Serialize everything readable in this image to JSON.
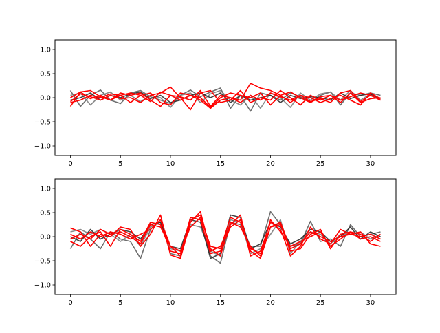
{
  "chart_data": [
    {
      "type": "line",
      "panel": "top",
      "xlim": [
        -1.55,
        32.55
      ],
      "ylim": [
        -1.2,
        1.2
      ],
      "xticks": [
        0,
        5,
        10,
        15,
        20,
        25,
        30
      ],
      "yticks": [
        -1.0,
        -0.5,
        0.0,
        0.5,
        1.0
      ],
      "xtick_labels": [
        "0",
        "5",
        "10",
        "15",
        "20",
        "25",
        "30"
      ],
      "ytick_labels": [
        "−1.0",
        "−0.5",
        "0.0",
        "0.5",
        "1.0"
      ],
      "x": [
        0,
        1,
        2,
        3,
        4,
        5,
        6,
        7,
        8,
        9,
        10,
        11,
        12,
        13,
        14,
        15,
        16,
        17,
        18,
        19,
        20,
        21,
        22,
        23,
        24,
        25,
        26,
        27,
        28,
        29,
        30,
        31
      ],
      "grid": false,
      "series": [
        {
          "color": "#555555",
          "values": [
            0.15,
            -0.18,
            0.05,
            0.16,
            -0.05,
            -0.12,
            0.1,
            0.15,
            0.02,
            -0.05,
            -0.12,
            0.05,
            0.16,
            0.02,
            0.12,
            0.2,
            -0.22,
            0.05,
            -0.28,
            0.1,
            0.05,
            -0.05,
            0.1,
            0.02,
            -0.1,
            0.05,
            0.12,
            -0.15,
            0.1,
            0.05,
            0.1,
            0.05
          ]
        },
        {
          "color": "#777777",
          "values": [
            0.05,
            0.1,
            -0.15,
            0.05,
            0.12,
            -0.05,
            0.05,
            -0.08,
            0.05,
            0.0,
            -0.2,
            0.05,
            0.1,
            -0.1,
            0.08,
            0.15,
            -0.05,
            -0.15,
            0.05,
            -0.22,
            0.1,
            0.0,
            -0.2,
            0.1,
            -0.05,
            0.08,
            0.12,
            -0.05,
            0.15,
            -0.05,
            0.08,
            -0.05
          ]
        },
        {
          "color": "#222222",
          "values": [
            -0.05,
            0.0,
            0.1,
            -0.05,
            0.05,
            0.0,
            0.08,
            0.12,
            -0.02,
            0.05,
            -0.1,
            -0.05,
            0.05,
            0.1,
            0.0,
            0.1,
            -0.1,
            0.05,
            -0.05,
            0.0,
            0.05,
            -0.1,
            0.05,
            -0.02,
            0.02,
            0.0,
            -0.05,
            0.1,
            -0.02,
            0.05,
            0.08,
            -0.02
          ]
        },
        {
          "color": "#ff0000",
          "values": [
            -0.18,
            0.12,
            0.15,
            0.02,
            -0.05,
            0.1,
            0.05,
            0.1,
            -0.05,
            -0.18,
            0.05,
            0.02,
            -0.05,
            0.15,
            -0.18,
            0.05,
            0.0,
            -0.05,
            0.3,
            0.2,
            0.15,
            0.05,
            -0.1,
            0.05,
            -0.08,
            -0.02,
            -0.1,
            0.1,
            0.15,
            -0.08,
            0.05,
            -0.05
          ]
        },
        {
          "color": "#ff0000",
          "values": [
            -0.08,
            0.08,
            0.02,
            -0.05,
            0.05,
            -0.02,
            0.0,
            -0.1,
            0.05,
            0.1,
            0.22,
            0.0,
            -0.25,
            0.1,
            0.15,
            -0.1,
            -0.05,
            0.15,
            -0.1,
            0.0,
            -0.05,
            0.15,
            0.0,
            -0.15,
            0.05,
            -0.05,
            0.05,
            -0.1,
            0.1,
            -0.1,
            -0.02,
            0.0
          ]
        },
        {
          "color": "#ff0000",
          "values": [
            0.0,
            0.12,
            -0.02,
            0.05,
            -0.05,
            0.05,
            0.1,
            0.05,
            -0.08,
            0.12,
            0.05,
            -0.05,
            0.05,
            0.0,
            -0.2,
            0.0,
            0.1,
            0.05,
            0.0,
            0.1,
            -0.15,
            0.05,
            0.12,
            0.0,
            -0.1,
            0.02,
            0.05,
            -0.05,
            0.02,
            0.1,
            0.05,
            -0.05
          ]
        },
        {
          "color": "#ff0000",
          "values": [
            -0.1,
            -0.05,
            0.05,
            0.0,
            0.08,
            0.05,
            -0.1,
            0.05,
            0.1,
            -0.1,
            -0.15,
            0.1,
            0.05,
            -0.05,
            -0.22,
            -0.05,
            0.0,
            -0.1,
            0.05,
            -0.05,
            0.1,
            0.02,
            -0.05,
            0.05,
            0.0,
            -0.1,
            -0.02,
            0.05,
            -0.05,
            -0.15,
            0.1,
            -0.02
          ]
        }
      ]
    },
    {
      "type": "line",
      "panel": "bottom",
      "xlim": [
        -1.55,
        32.55
      ],
      "ylim": [
        -1.2,
        1.2
      ],
      "xticks": [
        0,
        5,
        10,
        15,
        20,
        25,
        30
      ],
      "yticks": [
        -1.0,
        -0.5,
        0.0,
        0.5,
        1.0
      ],
      "xtick_labels": [
        "0",
        "5",
        "10",
        "15",
        "20",
        "25",
        "30"
      ],
      "ytick_labels": [
        "−1.0",
        "−0.5",
        "0.0",
        "0.5",
        "1.0"
      ],
      "x": [
        0,
        1,
        2,
        3,
        4,
        5,
        6,
        7,
        8,
        9,
        10,
        11,
        12,
        13,
        14,
        15,
        16,
        17,
        18,
        19,
        20,
        21,
        22,
        23,
        24,
        25,
        26,
        27,
        28,
        29,
        30,
        31
      ],
      "grid": false,
      "series": [
        {
          "color": "#555555",
          "values": [
            -0.25,
            0.1,
            -0.05,
            -0.25,
            0.1,
            -0.05,
            -0.1,
            -0.45,
            0.15,
            0.35,
            -0.35,
            -0.4,
            0.4,
            0.35,
            -0.4,
            -0.55,
            0.3,
            0.25,
            -0.2,
            -0.2,
            0.52,
            0.25,
            -0.2,
            -0.15,
            0.32,
            -0.1,
            -0.05,
            -0.2,
            0.25,
            0.0,
            0.05,
            0.1
          ]
        },
        {
          "color": "#777777",
          "values": [
            0.1,
            0.15,
            0.05,
            0.15,
            0.05,
            -0.1,
            0.05,
            -0.2,
            0.2,
            0.3,
            -0.25,
            -0.3,
            0.25,
            0.2,
            -0.3,
            -0.4,
            0.35,
            0.3,
            -0.35,
            -0.25,
            0.05,
            0.35,
            -0.35,
            -0.1,
            0.1,
            0.05,
            -0.15,
            0.05,
            0.05,
            0.1,
            -0.05,
            0.05
          ]
        },
        {
          "color": "#222222",
          "values": [
            0.0,
            -0.1,
            0.15,
            -0.05,
            0.05,
            0.15,
            0.1,
            -0.05,
            0.25,
            0.3,
            -0.2,
            -0.25,
            0.35,
            0.3,
            -0.45,
            -0.35,
            0.45,
            0.4,
            -0.25,
            -0.15,
            0.3,
            0.2,
            -0.15,
            -0.05,
            0.15,
            0.1,
            -0.1,
            0.0,
            0.2,
            -0.05,
            0.1,
            0.0
          ]
        },
        {
          "color": "#ff0000",
          "values": [
            0.18,
            0.1,
            -0.2,
            0.05,
            0.0,
            0.2,
            0.15,
            -0.2,
            0.05,
            0.45,
            -0.38,
            -0.45,
            0.3,
            0.52,
            -0.3,
            -0.2,
            0.25,
            0.45,
            -0.4,
            -0.3,
            0.3,
            0.15,
            -0.4,
            -0.2,
            0.2,
            -0.05,
            -0.15,
            0.15,
            0.05,
            0.1,
            -0.15,
            -0.2
          ]
        },
        {
          "color": "#ff0000",
          "values": [
            -0.1,
            -0.2,
            0.0,
            0.1,
            -0.2,
            0.15,
            0.05,
            -0.1,
            0.3,
            0.25,
            -0.3,
            -0.35,
            0.4,
            0.35,
            -0.35,
            -0.3,
            0.2,
            0.35,
            -0.3,
            -0.45,
            0.2,
            0.25,
            -0.3,
            -0.25,
            0.05,
            0.15,
            -0.25,
            0.05,
            0.1,
            -0.05,
            0.0,
            -0.1
          ]
        },
        {
          "color": "#ff0000",
          "values": [
            0.05,
            -0.05,
            0.1,
            0.0,
            0.1,
            0.05,
            -0.05,
            0.05,
            0.15,
            0.35,
            -0.2,
            -0.4,
            0.35,
            0.45,
            -0.25,
            -0.4,
            0.3,
            0.2,
            -0.2,
            -0.4,
            0.35,
            0.1,
            -0.2,
            -0.1,
            0.0,
            0.1,
            -0.2,
            -0.05,
            0.1,
            0.05,
            -0.1,
            0.05
          ]
        },
        {
          "color": "#ff0000",
          "values": [
            -0.05,
            0.05,
            -0.05,
            0.15,
            0.05,
            0.1,
            0.0,
            -0.15,
            0.25,
            0.2,
            -0.2,
            -0.3,
            0.2,
            0.4,
            -0.2,
            -0.25,
            0.4,
            0.3,
            -0.25,
            -0.35,
            0.2,
            0.3,
            -0.25,
            -0.15,
            0.1,
            0.0,
            -0.1,
            0.0,
            0.05,
            0.0,
            0.05,
            -0.05
          ]
        }
      ]
    }
  ]
}
